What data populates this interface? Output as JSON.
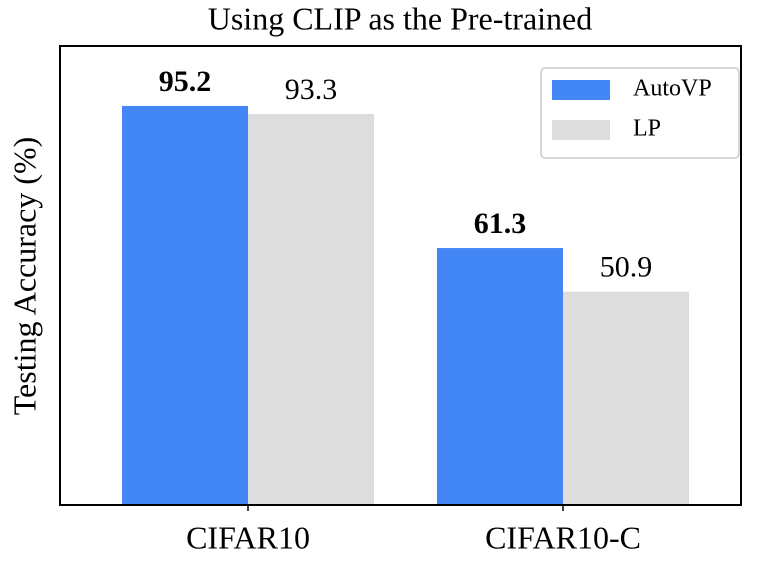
{
  "chart_data": {
    "type": "bar",
    "title": "Using CLIP as the Pre-trained",
    "y_label": "Testing Accuracy (%)",
    "categories": [
      "CIFAR10",
      "CIFAR10-C"
    ],
    "series": [
      {
        "name": "AutoVP",
        "color": "#4287f5",
        "values": [
          95.2,
          61.3
        ],
        "value_label_weight": "bold"
      },
      {
        "name": "LP",
        "color": "#dddddd",
        "values": [
          93.3,
          50.9
        ],
        "value_label_weight": "normal"
      }
    ],
    "ylim": [
      0,
      109.5
    ],
    "legend": "upper right"
  }
}
